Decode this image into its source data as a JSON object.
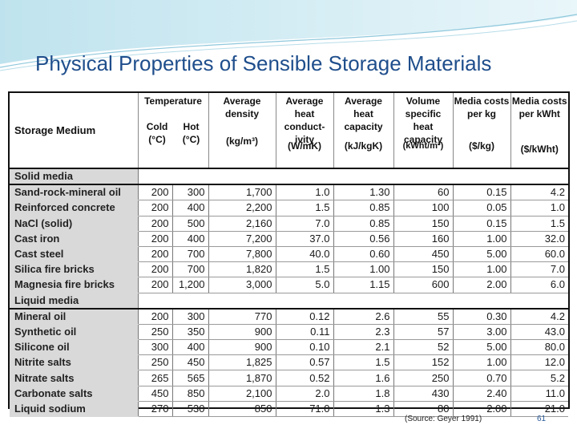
{
  "slide": {
    "title": "Physical Properties of Sensible Storage Materials",
    "source": "(Source: Geyer 1991)",
    "page_number": "61",
    "accent_color": "#1f4e8c"
  },
  "table": {
    "headers": {
      "medium": "Storage Medium",
      "temperature": "Temperature",
      "cold": "Cold",
      "cold_unit": "(°C)",
      "hot": "Hot",
      "hot_unit": "(°C)",
      "density": "Average density",
      "density_unit": "(kg/m³)",
      "conductivity": "Average heat conduct-ivity",
      "conductivity_unit": "(W/mK)",
      "heat_capacity": "Average heat capacity",
      "heat_capacity_unit": "(kJ/kgK)",
      "volume_capacity": "Volume specific heat capacity",
      "volume_capacity_unit": "(kWht/m³)",
      "media_cost_kg": "Media costs per kg",
      "media_cost_kg_unit": "($/kg)",
      "media_cost_kwh": "Media costs per kWht",
      "media_cost_kwh_unit": "($/kWht)"
    },
    "groups": [
      {
        "label": "Solid media",
        "rows": [
          [
            "Sand-rock-mineral oil",
            "200",
            "300",
            "1,700",
            "1.0",
            "1.30",
            "60",
            "0.15",
            "4.2"
          ],
          [
            "Reinforced concrete",
            "200",
            "400",
            "2,200",
            "1.5",
            "0.85",
            "100",
            "0.05",
            "1.0"
          ],
          [
            "NaCl (solid)",
            "200",
            "500",
            "2,160",
            "7.0",
            "0.85",
            "150",
            "0.15",
            "1.5"
          ],
          [
            "Cast iron",
            "200",
            "400",
            "7,200",
            "37.0",
            "0.56",
            "160",
            "1.00",
            "32.0"
          ],
          [
            "Cast steel",
            "200",
            "700",
            "7,800",
            "40.0",
            "0.60",
            "450",
            "5.00",
            "60.0"
          ],
          [
            "Silica fire bricks",
            "200",
            "700",
            "1,820",
            "1.5",
            "1.00",
            "150",
            "1.00",
            "7.0"
          ],
          [
            "Magnesia fire bricks",
            "200",
            "1,200",
            "3,000",
            "5.0",
            "1.15",
            "600",
            "2.00",
            "6.0"
          ]
        ]
      },
      {
        "label": "Liquid media",
        "rows": [
          [
            "Mineral oil",
            "200",
            "300",
            "770",
            "0.12",
            "2.6",
            "55",
            "0.30",
            "4.2"
          ],
          [
            "Synthetic oil",
            "250",
            "350",
            "900",
            "0.11",
            "2.3",
            "57",
            "3.00",
            "43.0"
          ],
          [
            "Silicone oil",
            "300",
            "400",
            "900",
            "0.10",
            "2.1",
            "52",
            "5.00",
            "80.0"
          ],
          [
            "Nitrite salts",
            "250",
            "450",
            "1,825",
            "0.57",
            "1.5",
            "152",
            "1.00",
            "12.0"
          ],
          [
            "Nitrate salts",
            "265",
            "565",
            "1,870",
            "0.52",
            "1.6",
            "250",
            "0.70",
            "5.2"
          ],
          [
            "Carbonate salts",
            "450",
            "850",
            "2,100",
            "2.0",
            "1.8",
            "430",
            "2.40",
            "11.0"
          ],
          [
            "Liquid sodium",
            "270",
            "530",
            "850",
            "71.0",
            "1.3",
            "80",
            "2.00",
            "21.0"
          ]
        ]
      }
    ]
  }
}
